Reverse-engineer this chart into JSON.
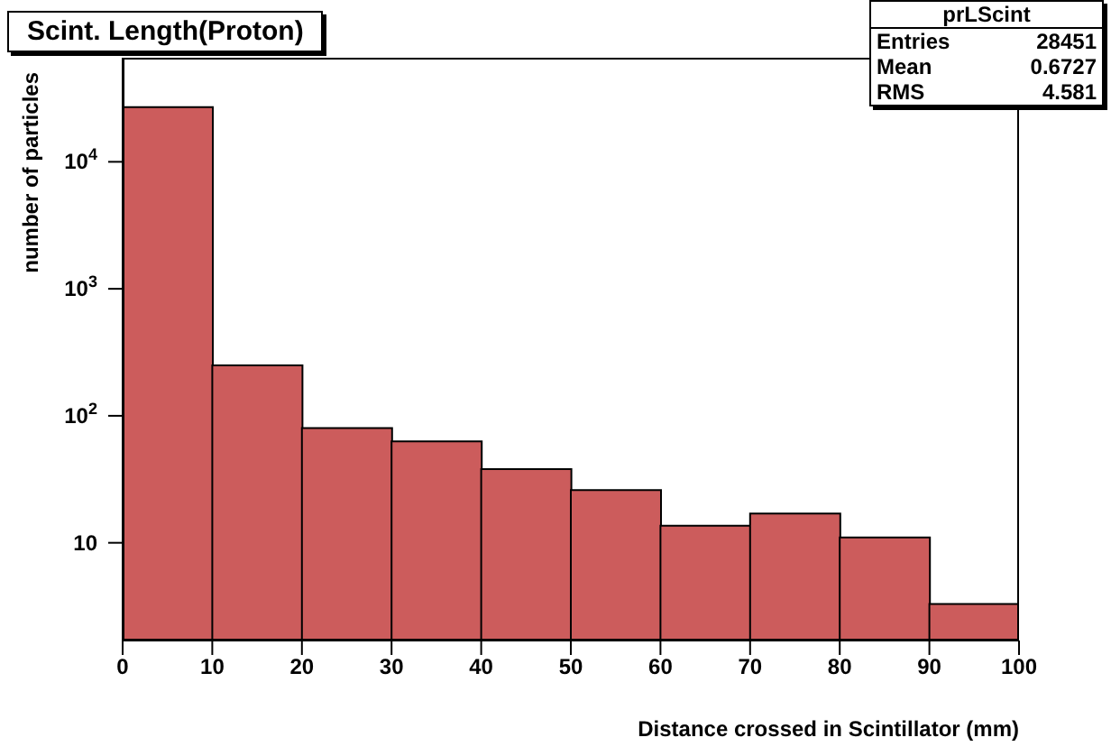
{
  "chart_data": {
    "type": "histogram",
    "title": "Scint. Length(Proton)",
    "xlabel": "Distance crossed in Scintillator (mm)",
    "ylabel": "number of particles",
    "bins": [
      0,
      10,
      20,
      30,
      40,
      50,
      60,
      70,
      80,
      90,
      100
    ],
    "values": [
      27000,
      250,
      80,
      63,
      38,
      26,
      13.6,
      17,
      11,
      3.3
    ],
    "color": "#cc5c5c",
    "log": "y",
    "xlim": [
      0,
      100
    ],
    "xticks": [
      0,
      10,
      20,
      30,
      40,
      50,
      60,
      70,
      80,
      90,
      100
    ],
    "ylim": [
      1.7,
      66000
    ],
    "yticks": [
      10,
      {
        "value": 100,
        "label": "10$^{2}$"
      },
      {
        "value": 1000,
        "label": "10$^{3}$"
      },
      {
        "value": 10000,
        "label": "10$^{4}$"
      }
    ],
    "annotations": [
      "prLScint",
      "Entries 28451",
      "Mean 0.6727",
      "RMS 4.581"
    ]
  }
}
